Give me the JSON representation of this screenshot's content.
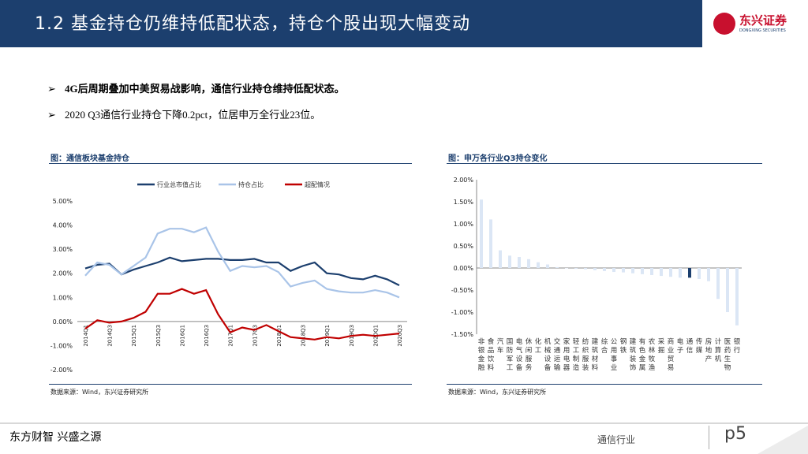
{
  "header": {
    "title": "1.2 基金持仓仍维持低配状态，持仓个股出现大幅变动",
    "logo_cn": "东兴证券",
    "logo_en": "DONGXING SECURITIES"
  },
  "bullets": [
    {
      "bold": "4G后周期叠加中美贸易战影响，通信行业持仓维持低配状态。",
      "text": ""
    },
    {
      "bold": "",
      "text": "2020 Q3通信行业持仓下降0.2pct，位居申万全行业23位。"
    }
  ],
  "left_chart": {
    "heading": "图：通信板块基金持仓",
    "source": "数据来源：Wind，东兴证券研究所"
  },
  "right_chart": {
    "heading": "图：申万各行业Q3持仓变化",
    "source": "数据来源：Wind，东兴证券研究所"
  },
  "footer": {
    "slogan": "东方财智  兴盛之源",
    "section": "通信行业",
    "page": "p5"
  },
  "colors": {
    "navy": "#1c3f6e",
    "light_blue": "#a9c4e8",
    "red": "#c00000",
    "pale_bar": "#dbe6f5"
  },
  "chart_data": [
    {
      "type": "line",
      "x": [
        "2014Q1",
        "2014Q2",
        "2014Q3",
        "2014Q4",
        "2015Q1",
        "2015Q2",
        "2015Q3",
        "2015Q4",
        "2016Q1",
        "2016Q2",
        "2016Q3",
        "2016Q4",
        "2017Q1",
        "2017Q2",
        "2017Q3",
        "2017Q4",
        "2018Q1",
        "2018Q2",
        "2018Q3",
        "2018Q4",
        "2019Q1",
        "2019Q2",
        "2019Q3",
        "2019Q4",
        "2020Q1",
        "2020Q2",
        "2020Q3"
      ],
      "x_tick_labels": [
        "2014Q1",
        "2014Q3",
        "2015Q1",
        "2015Q3",
        "2016Q1",
        "2016Q3",
        "2017Q1",
        "2017Q3",
        "2018Q1",
        "2018Q3",
        "2019Q1",
        "2019Q3",
        "2020Q1",
        "2020Q3"
      ],
      "series": [
        {
          "name": "行业总市值占比",
          "values": [
            2.2,
            2.35,
            2.4,
            1.95,
            2.15,
            2.3,
            2.45,
            2.65,
            2.5,
            2.55,
            2.6,
            2.6,
            2.55,
            2.55,
            2.6,
            2.45,
            2.45,
            2.1,
            2.3,
            2.45,
            2.0,
            1.95,
            1.8,
            1.75,
            1.9,
            1.75,
            1.5
          ]
        },
        {
          "name": "持仓占比",
          "values": [
            1.9,
            2.45,
            2.35,
            1.95,
            2.3,
            2.65,
            3.65,
            3.85,
            3.85,
            3.7,
            3.9,
            2.9,
            2.1,
            2.3,
            2.25,
            2.3,
            2.05,
            1.45,
            1.6,
            1.7,
            1.35,
            1.25,
            1.2,
            1.2,
            1.3,
            1.2,
            1.0
          ]
        },
        {
          "name": "超配情况",
          "values": [
            -0.3,
            0.05,
            -0.05,
            0.0,
            0.15,
            0.4,
            1.15,
            1.15,
            1.35,
            1.15,
            1.3,
            0.3,
            -0.45,
            -0.25,
            -0.35,
            -0.15,
            -0.4,
            -0.65,
            -0.7,
            -0.75,
            -0.65,
            -0.7,
            -0.6,
            -0.55,
            -0.6,
            -0.55,
            -0.5
          ]
        }
      ],
      "ylim": [
        -2.0,
        5.0
      ],
      "yticks": [
        "-2.00%",
        "-1.00%",
        "0.00%",
        "1.00%",
        "2.00%",
        "3.00%",
        "4.00%",
        "5.00%"
      ],
      "legend_position": "top",
      "grid": false
    },
    {
      "type": "bar",
      "categories": [
        "非银金融",
        "食品饮料",
        "汽车",
        "国防军工",
        "电气设备",
        "休闲服务",
        "化工",
        "机械设备",
        "交通运输",
        "家用电器",
        "轻工制造",
        "纺织服装",
        "建筑材料",
        "综合",
        "公用事业",
        "钢铁",
        "建筑装饰",
        "有色金属",
        "农林牧渔",
        "采掘",
        "商业贸易",
        "电子",
        "通信",
        "传媒",
        "房地产",
        "计算机",
        "医药生物",
        "银行"
      ],
      "values": [
        1.55,
        1.1,
        0.4,
        0.28,
        0.25,
        0.2,
        0.13,
        0.08,
        0.02,
        0.0,
        -0.02,
        -0.03,
        -0.05,
        -0.07,
        -0.09,
        -0.1,
        -0.12,
        -0.14,
        -0.16,
        -0.18,
        -0.2,
        -0.22,
        -0.22,
        -0.25,
        -0.3,
        -0.7,
        -1.0,
        -1.3
      ],
      "highlight": "通信",
      "ylim": [
        -1.5,
        2.0
      ],
      "yticks": [
        "-1.50%",
        "-1.00%",
        "-0.50%",
        "0.00%",
        "0.50%",
        "1.00%",
        "1.50%",
        "2.00%"
      ],
      "grid": false
    }
  ]
}
